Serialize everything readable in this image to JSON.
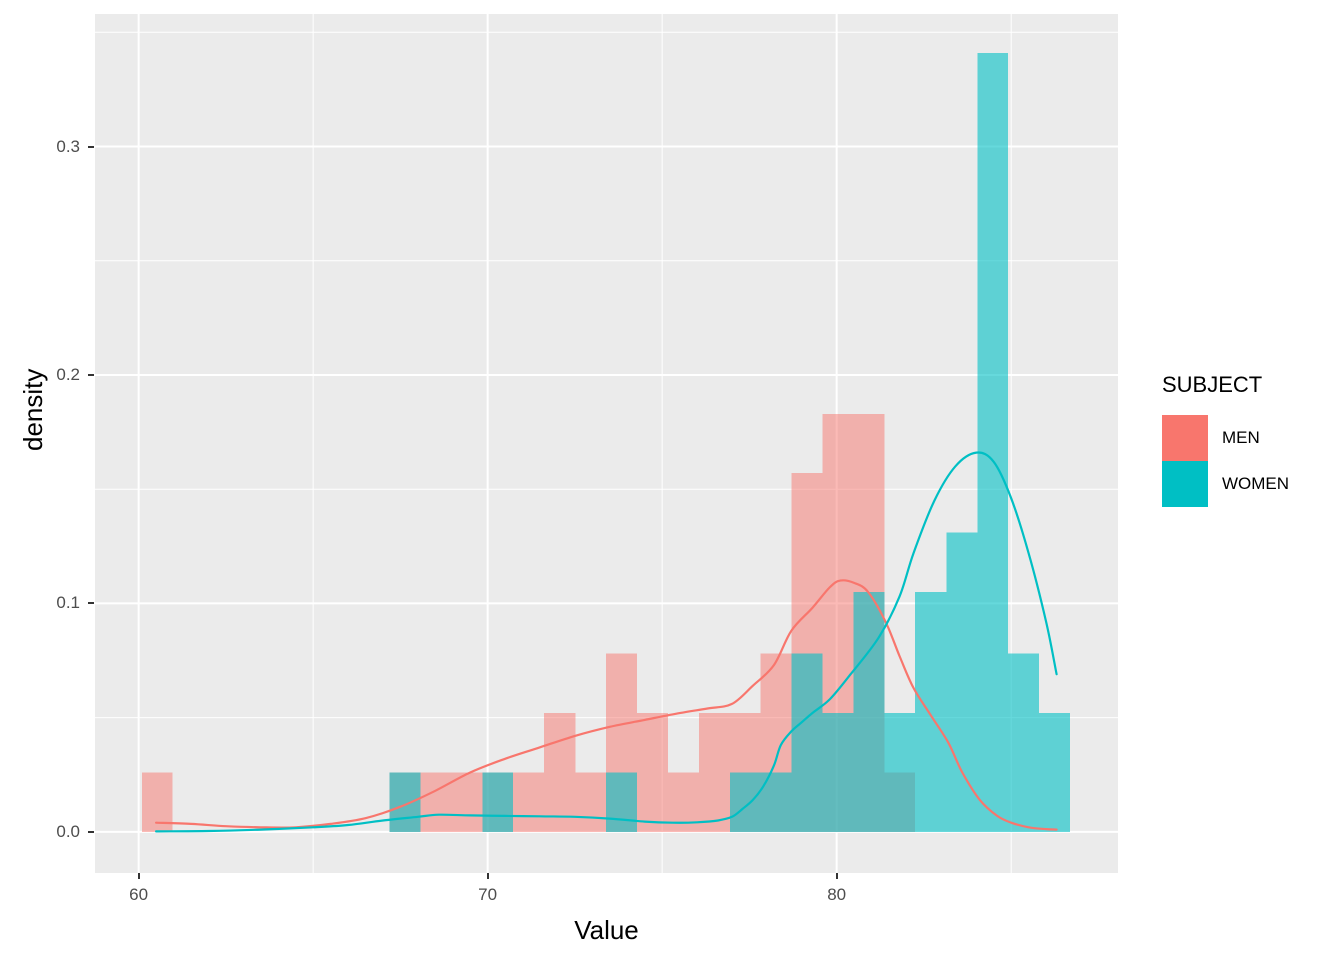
{
  "chart_data": {
    "type": "histogram+density",
    "title": "",
    "xlabel": "Value",
    "ylabel": "density",
    "x_range": [
      58.75,
      88.06
    ],
    "y_range": [
      -0.018,
      0.358
    ],
    "x_ticks": [
      {
        "value": 60,
        "label": "60"
      },
      {
        "value": 70,
        "label": "70"
      },
      {
        "value": 80,
        "label": "80"
      }
    ],
    "x_minor_ticks": [
      65,
      75,
      85
    ],
    "y_ticks": [
      {
        "value": 0.0,
        "label": "0.0"
      },
      {
        "value": 0.1,
        "label": "0.1"
      },
      {
        "value": 0.2,
        "label": "0.2"
      },
      {
        "value": 0.3,
        "label": "0.3"
      }
    ],
    "y_minor_ticks": [
      0.05,
      0.15,
      0.25,
      0.35
    ],
    "grid": true,
    "panel_background": "#EBEBEB",
    "grid_color": "#FFFFFF",
    "tick_label_color": "#4D4D4D",
    "axis_title_color": "#000000",
    "legend": {
      "title": "SUBJECT",
      "position": "right",
      "items": [
        {
          "label": "MEN",
          "color": "#F8766D"
        },
        {
          "label": "WOMEN",
          "color": "#00BFC4"
        }
      ]
    },
    "bin_width": 0.888,
    "series": [
      {
        "name": "MEN",
        "color": "#F8766D",
        "fill_alpha": 0.5,
        "bins": [
          [
            60.09,
            60.97,
            0.026
          ],
          [
            67.19,
            68.08,
            0.026
          ],
          [
            68.08,
            68.96,
            0.026
          ],
          [
            68.96,
            69.85,
            0.026
          ],
          [
            69.85,
            70.73,
            0.026
          ],
          [
            70.73,
            71.62,
            0.026
          ],
          [
            71.62,
            72.51,
            0.052
          ],
          [
            72.51,
            73.39,
            0.026
          ],
          [
            73.39,
            74.28,
            0.078
          ],
          [
            74.28,
            75.16,
            0.052
          ],
          [
            75.16,
            76.05,
            0.026
          ],
          [
            76.05,
            76.94,
            0.052
          ],
          [
            76.94,
            77.82,
            0.052
          ],
          [
            77.82,
            78.71,
            0.078
          ],
          [
            78.71,
            79.6,
            0.157
          ],
          [
            79.6,
            80.48,
            0.183
          ],
          [
            80.48,
            81.37,
            0.183
          ],
          [
            81.37,
            82.25,
            0.026
          ]
        ],
        "density_curve": [
          [
            60.5,
            0.004
          ],
          [
            61.5,
            0.0035
          ],
          [
            62.5,
            0.0025
          ],
          [
            63.5,
            0.002
          ],
          [
            64.5,
            0.002
          ],
          [
            65.5,
            0.0035
          ],
          [
            66.5,
            0.006
          ],
          [
            67.5,
            0.011
          ],
          [
            68.5,
            0.018
          ],
          [
            69.5,
            0.026
          ],
          [
            70.5,
            0.032
          ],
          [
            71.5,
            0.037
          ],
          [
            72.5,
            0.042
          ],
          [
            73.5,
            0.046
          ],
          [
            74.5,
            0.049
          ],
          [
            75.5,
            0.052
          ],
          [
            76.3,
            0.054
          ],
          [
            77.0,
            0.056
          ],
          [
            77.6,
            0.064
          ],
          [
            78.2,
            0.073
          ],
          [
            78.7,
            0.088
          ],
          [
            79.3,
            0.098
          ],
          [
            79.8,
            0.107
          ],
          [
            80.1,
            0.11
          ],
          [
            80.5,
            0.109
          ],
          [
            80.9,
            0.105
          ],
          [
            81.4,
            0.092
          ],
          [
            81.8,
            0.077
          ],
          [
            82.2,
            0.063
          ],
          [
            82.7,
            0.051
          ],
          [
            83.2,
            0.039
          ],
          [
            83.6,
            0.026
          ],
          [
            84.1,
            0.014
          ],
          [
            84.6,
            0.007
          ],
          [
            85.0,
            0.004
          ],
          [
            85.5,
            0.002
          ],
          [
            86.0,
            0.0012
          ],
          [
            86.3,
            0.001
          ]
        ]
      },
      {
        "name": "WOMEN",
        "color": "#00BFC4",
        "fill_alpha": 0.6,
        "bins": [
          [
            67.19,
            68.08,
            0.026
          ],
          [
            69.85,
            70.73,
            0.026
          ],
          [
            73.39,
            74.28,
            0.026
          ],
          [
            76.94,
            77.82,
            0.026
          ],
          [
            77.82,
            78.71,
            0.026
          ],
          [
            78.71,
            79.6,
            0.078
          ],
          [
            79.6,
            80.48,
            0.052
          ],
          [
            80.48,
            81.37,
            0.105
          ],
          [
            81.37,
            82.25,
            0.052
          ],
          [
            82.25,
            83.14,
            0.105
          ],
          [
            83.14,
            84.03,
            0.131
          ],
          [
            84.03,
            84.91,
            0.341
          ],
          [
            84.91,
            85.8,
            0.078
          ],
          [
            85.8,
            86.69,
            0.052
          ]
        ],
        "density_curve": [
          [
            60.5,
            0.0002
          ],
          [
            62.0,
            0.0004
          ],
          [
            63.5,
            0.001
          ],
          [
            65.0,
            0.002
          ],
          [
            66.0,
            0.003
          ],
          [
            67.0,
            0.005
          ],
          [
            68.0,
            0.0066
          ],
          [
            68.6,
            0.0075
          ],
          [
            69.5,
            0.0072
          ],
          [
            70.5,
            0.007
          ],
          [
            71.5,
            0.0068
          ],
          [
            72.5,
            0.0066
          ],
          [
            73.5,
            0.0058
          ],
          [
            74.5,
            0.0045
          ],
          [
            75.3,
            0.004
          ],
          [
            76.0,
            0.0042
          ],
          [
            76.6,
            0.005
          ],
          [
            77.0,
            0.0066
          ],
          [
            77.3,
            0.01
          ],
          [
            77.6,
            0.014
          ],
          [
            77.9,
            0.02
          ],
          [
            78.2,
            0.029
          ],
          [
            78.4,
            0.038
          ],
          [
            78.7,
            0.044
          ],
          [
            79.0,
            0.048
          ],
          [
            79.3,
            0.052
          ],
          [
            79.8,
            0.058
          ],
          [
            80.4,
            0.069
          ],
          [
            81.2,
            0.085
          ],
          [
            81.8,
            0.103
          ],
          [
            82.2,
            0.122
          ],
          [
            82.8,
            0.145
          ],
          [
            83.4,
            0.16
          ],
          [
            84.0,
            0.166
          ],
          [
            84.5,
            0.162
          ],
          [
            85.0,
            0.146
          ],
          [
            85.5,
            0.122
          ],
          [
            86.0,
            0.092
          ],
          [
            86.3,
            0.069
          ]
        ]
      }
    ]
  }
}
